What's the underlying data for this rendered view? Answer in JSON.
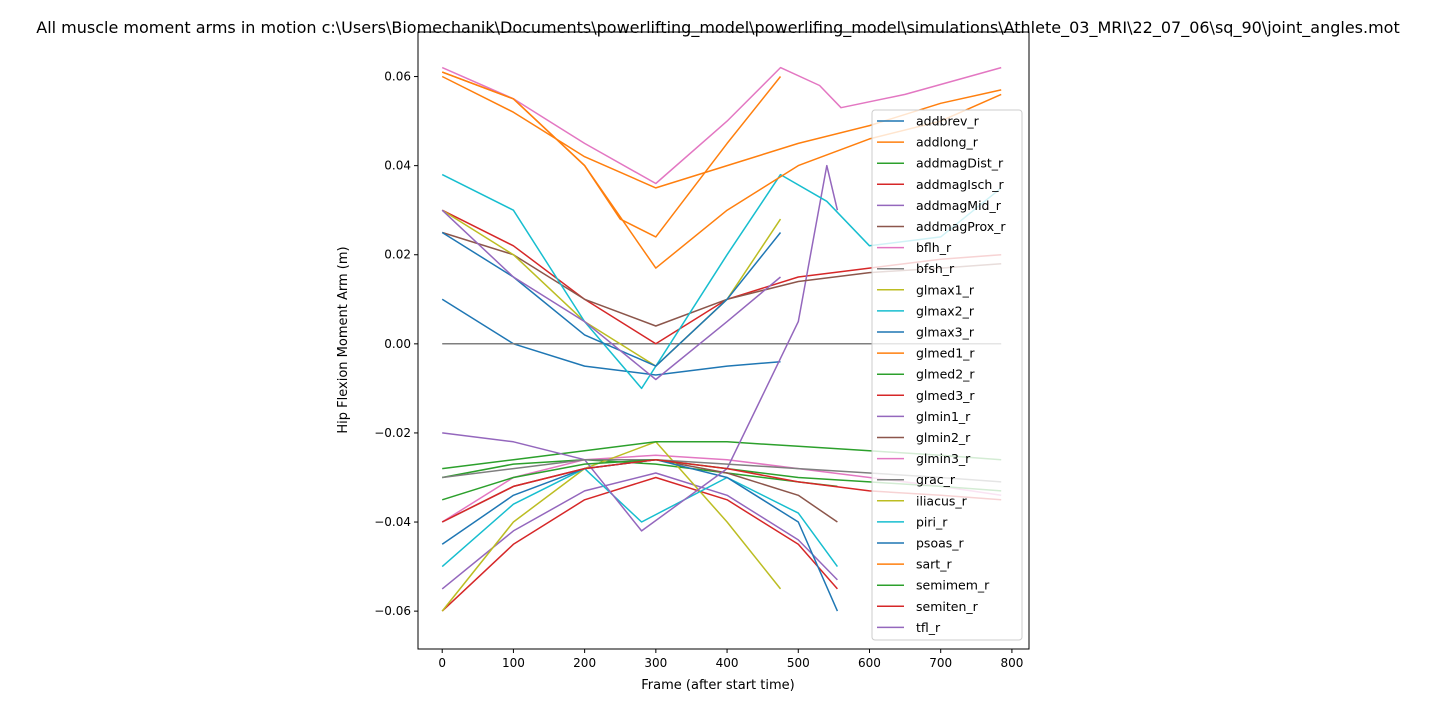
{
  "chart_data": {
    "type": "line",
    "title": "All muscle moment arms in motion c:\\Users\\Biomechanik\\Documents\\powerlifting_model\\powerlifing_model\\simulations\\Athlete_03_MRI\\22_07_06\\sq_90\\joint_angles.mot",
    "xlabel": "Frame (after start time)",
    "ylabel": "Hip Flexion Moment Arm (m)",
    "xlim": [
      -34,
      824
    ],
    "ylim": [
      -0.0685,
      0.07
    ],
    "xticks": [
      0,
      100,
      200,
      300,
      400,
      500,
      600,
      700,
      800
    ],
    "xtick_labels": [
      "0",
      "100",
      "200",
      "300",
      "400",
      "500",
      "600",
      "700",
      "800"
    ],
    "yticks": [
      -0.06,
      -0.04,
      -0.02,
      0.0,
      0.02,
      0.04,
      0.06
    ],
    "ytick_labels": [
      "−0.06",
      "−0.04",
      "−0.02",
      "0.00",
      "0.02",
      "0.04",
      "0.06"
    ],
    "grid": false,
    "legend_position": "right",
    "series": [
      {
        "name": "addbrev_r",
        "color": "#1f77b4",
        "x": [
          0,
          100,
          200,
          300,
          400,
          475
        ],
        "y": [
          0.01,
          0.0,
          -0.005,
          -0.007,
          -0.005,
          -0.004
        ]
      },
      {
        "name": "addlong_r",
        "color": "#ff7f0e",
        "x": [
          0,
          100,
          200,
          250,
          300,
          400,
          475
        ],
        "y": [
          0.061,
          0.055,
          0.04,
          0.028,
          0.024,
          0.045,
          0.06
        ]
      },
      {
        "name": "addmagDist_r",
        "color": "#2ca02c",
        "x": [
          0,
          100,
          200,
          300,
          400,
          500,
          555
        ],
        "y": [
          -0.03,
          -0.027,
          -0.026,
          -0.027,
          -0.029,
          -0.031,
          -0.032
        ]
      },
      {
        "name": "addmagIsch_r",
        "color": "#d62728",
        "x": [
          0,
          100,
          200,
          300,
          400,
          500,
          555
        ],
        "y": [
          -0.06,
          -0.045,
          -0.035,
          -0.03,
          -0.035,
          -0.045,
          -0.055
        ]
      },
      {
        "name": "addmagMid_r",
        "color": "#9467bd",
        "x": [
          0,
          100,
          200,
          300,
          400,
          500,
          555
        ],
        "y": [
          -0.055,
          -0.042,
          -0.033,
          -0.029,
          -0.034,
          -0.044,
          -0.053
        ]
      },
      {
        "name": "addmagProx_r",
        "color": "#8c564b",
        "x": [
          0,
          100,
          200,
          300,
          400,
          500,
          555
        ],
        "y": [
          -0.04,
          -0.032,
          -0.028,
          -0.026,
          -0.029,
          -0.034,
          -0.04
        ]
      },
      {
        "name": "bflh_r",
        "color": "#e377c2",
        "x": [
          0,
          100,
          200,
          300,
          400,
          500,
          600,
          700,
          785
        ],
        "y": [
          -0.04,
          -0.03,
          -0.026,
          -0.025,
          -0.026,
          -0.028,
          -0.03,
          -0.032,
          -0.034
        ]
      },
      {
        "name": "bfsh_r",
        "color": "#7f7f7f",
        "x": [
          0,
          100,
          200,
          300,
          400,
          500,
          600,
          700,
          785
        ],
        "y": [
          0.0,
          0.0,
          0.0,
          0.0,
          0.0,
          0.0,
          0.0,
          0.0,
          0.0
        ]
      },
      {
        "name": "glmax1_r",
        "color": "#bcbd22",
        "x": [
          0,
          100,
          200,
          300,
          400,
          475
        ],
        "y": [
          -0.06,
          -0.04,
          -0.028,
          -0.022,
          -0.04,
          -0.055
        ]
      },
      {
        "name": "glmax2_r",
        "color": "#17becf",
        "x": [
          0,
          100,
          200,
          280,
          400,
          500,
          555
        ],
        "y": [
          -0.05,
          -0.036,
          -0.028,
          -0.04,
          -0.03,
          -0.038,
          -0.05
        ]
      },
      {
        "name": "glmax3_r",
        "color": "#1f77b4",
        "x": [
          0,
          100,
          200,
          300,
          400,
          500,
          555
        ],
        "y": [
          -0.045,
          -0.034,
          -0.028,
          -0.026,
          -0.03,
          -0.04,
          -0.06
        ]
      },
      {
        "name": "glmed1_r",
        "color": "#ff7f0e",
        "x": [
          0,
          100,
          200,
          300,
          400,
          500,
          600,
          700,
          785
        ],
        "y": [
          0.06,
          0.052,
          0.042,
          0.035,
          0.04,
          0.045,
          0.049,
          0.054,
          0.057
        ]
      },
      {
        "name": "glmed2_r",
        "color": "#2ca02c",
        "x": [
          0,
          100,
          200,
          300,
          400,
          500,
          600,
          700,
          785
        ],
        "y": [
          -0.028,
          -0.026,
          -0.024,
          -0.022,
          -0.022,
          -0.023,
          -0.024,
          -0.025,
          -0.026
        ]
      },
      {
        "name": "glmed3_r",
        "color": "#d62728",
        "x": [
          0,
          100,
          200,
          300,
          400,
          500,
          600,
          700,
          785
        ],
        "y": [
          0.03,
          0.022,
          0.01,
          0.0,
          0.01,
          0.015,
          0.017,
          0.019,
          0.02
        ]
      },
      {
        "name": "glmin1_r",
        "color": "#9467bd",
        "x": [
          0,
          100,
          200,
          280,
          400,
          500,
          540,
          555
        ],
        "y": [
          -0.02,
          -0.022,
          -0.026,
          -0.042,
          -0.028,
          0.005,
          0.04,
          0.03
        ]
      },
      {
        "name": "glmin2_r",
        "color": "#8c564b",
        "x": [
          0,
          100,
          200,
          300,
          400,
          500,
          600,
          700,
          785
        ],
        "y": [
          0.025,
          0.02,
          0.01,
          0.004,
          0.01,
          0.014,
          0.016,
          0.017,
          0.018
        ]
      },
      {
        "name": "glmin3_r",
        "color": "#e377c2",
        "x": [
          0,
          100,
          200,
          300,
          400,
          475,
          530,
          560,
          650,
          785
        ],
        "y": [
          0.062,
          0.055,
          0.045,
          0.036,
          0.05,
          0.062,
          0.058,
          0.053,
          0.056,
          0.062
        ]
      },
      {
        "name": "grac_r",
        "color": "#7f7f7f",
        "x": [
          0,
          100,
          200,
          300,
          400,
          500,
          600,
          700,
          785
        ],
        "y": [
          -0.03,
          -0.028,
          -0.026,
          -0.026,
          -0.027,
          -0.028,
          -0.029,
          -0.03,
          -0.031
        ]
      },
      {
        "name": "iliacus_r",
        "color": "#bcbd22",
        "x": [
          0,
          100,
          200,
          300,
          400,
          475
        ],
        "y": [
          0.03,
          0.02,
          0.005,
          -0.005,
          0.01,
          0.028
        ]
      },
      {
        "name": "piri_r",
        "color": "#17becf",
        "x": [
          0,
          100,
          200,
          280,
          400,
          475,
          540,
          600,
          700,
          785
        ],
        "y": [
          0.038,
          0.03,
          0.005,
          -0.01,
          0.02,
          0.038,
          0.032,
          0.022,
          0.024,
          0.035
        ]
      },
      {
        "name": "psoas_r",
        "color": "#1f77b4",
        "x": [
          0,
          100,
          200,
          300,
          400,
          475
        ],
        "y": [
          0.025,
          0.015,
          0.002,
          -0.005,
          0.01,
          0.025
        ]
      },
      {
        "name": "sart_r",
        "color": "#ff7f0e",
        "x": [
          0,
          100,
          200,
          300,
          400,
          500,
          600,
          700,
          785
        ],
        "y": [
          0.061,
          0.055,
          0.04,
          0.017,
          0.03,
          0.04,
          0.046,
          0.05,
          0.056
        ]
      },
      {
        "name": "semimem_r",
        "color": "#2ca02c",
        "x": [
          0,
          100,
          200,
          300,
          400,
          500,
          600,
          700,
          785
        ],
        "y": [
          -0.035,
          -0.03,
          -0.027,
          -0.026,
          -0.028,
          -0.03,
          -0.031,
          -0.032,
          -0.033
        ]
      },
      {
        "name": "semiten_r",
        "color": "#d62728",
        "x": [
          0,
          100,
          200,
          300,
          400,
          500,
          600,
          700,
          785
        ],
        "y": [
          -0.04,
          -0.032,
          -0.028,
          -0.026,
          -0.028,
          -0.031,
          -0.033,
          -0.034,
          -0.035
        ]
      },
      {
        "name": "tfl_r",
        "color": "#9467bd",
        "x": [
          0,
          100,
          200,
          300,
          400,
          475
        ],
        "y": [
          0.03,
          0.015,
          0.005,
          -0.008,
          0.005,
          0.015
        ]
      }
    ]
  }
}
